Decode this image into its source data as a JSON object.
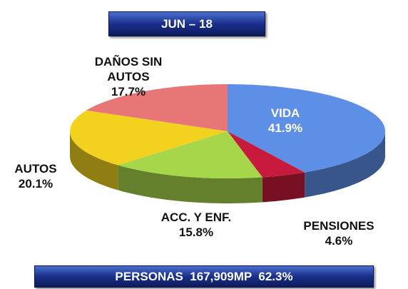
{
  "chart_data": {
    "type": "pie3d",
    "title": "JUN – 18",
    "categories": [
      "VIDA",
      "PENSIONES",
      "ACC. Y ENF.",
      "AUTOS",
      "DAÑOS SIN AUTOS"
    ],
    "values": [
      41.9,
      4.6,
      15.8,
      20.1,
      17.7
    ],
    "value_labels": [
      "41.9%",
      "4.6%",
      "15.8%",
      "20.1%",
      "17.7%"
    ],
    "colors": [
      "#5e8fe6",
      "#c81a3c",
      "#a6d64a",
      "#f2d21e",
      "#e97676"
    ],
    "footer": "PERSONAS  167,909MP  62.3%"
  }
}
